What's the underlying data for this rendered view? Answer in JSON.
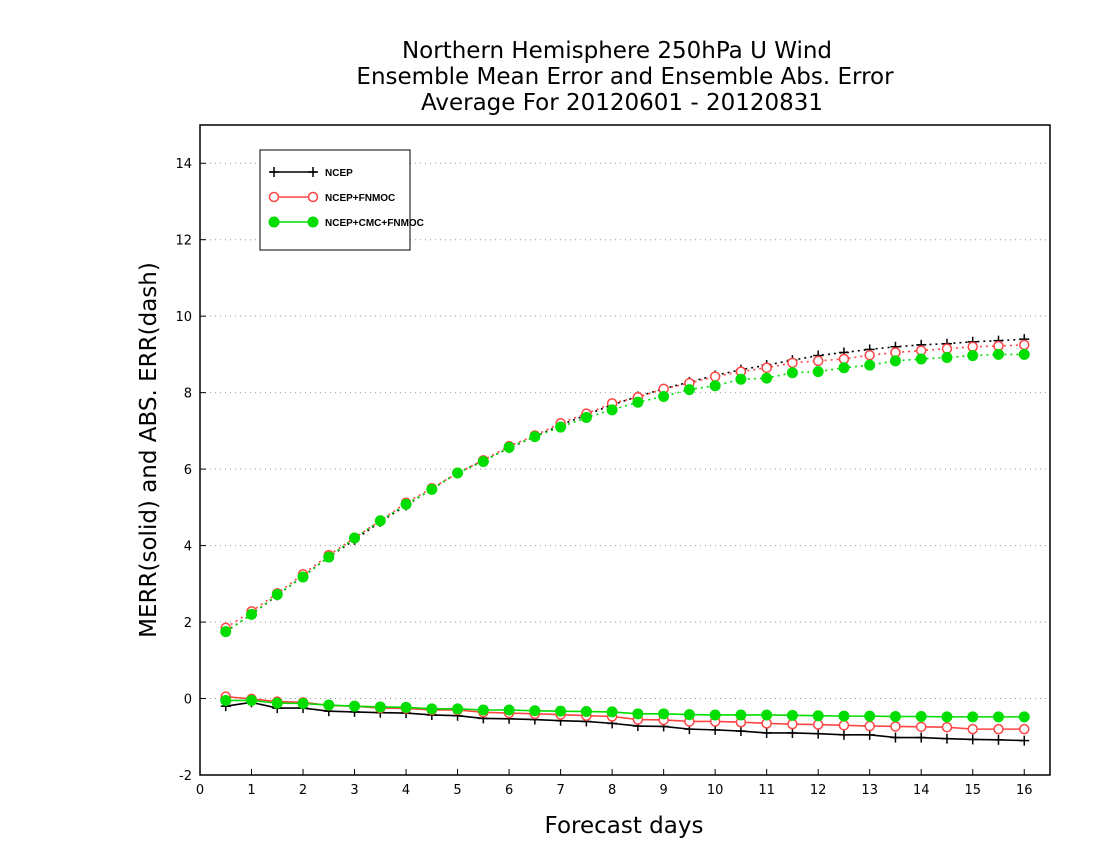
{
  "chart_data": {
    "type": "line",
    "title_lines": [
      "Northern Hemisphere 250hPa U Wind",
      "Ensemble Mean Error and Ensemble Abs. Error",
      "Average For 20120601 - 20120831"
    ],
    "xlabel": "Forecast days",
    "ylabel": "MERR(solid) and ABS. ERR(dash)",
    "xlim": [
      0,
      16.5
    ],
    "ylim": [
      -2,
      15
    ],
    "xticks": [
      "0",
      "1",
      "2",
      "3",
      "4",
      "5",
      "6",
      "7",
      "8",
      "9",
      "10",
      "11",
      "12",
      "13",
      "14",
      "15",
      "16"
    ],
    "yticks": [
      "-2",
      "0",
      "2",
      "4",
      "6",
      "8",
      "10",
      "12",
      "14"
    ],
    "grid": "horizontal dotted",
    "legend_position": "top-left",
    "x": [
      0.5,
      1.0,
      1.5,
      2.0,
      2.5,
      3.0,
      3.5,
      4.0,
      4.5,
      5.0,
      5.5,
      6.0,
      6.5,
      7.0,
      7.5,
      8.0,
      8.5,
      9.0,
      9.5,
      10.0,
      10.5,
      11.0,
      11.5,
      12.0,
      12.5,
      13.0,
      13.5,
      14.0,
      14.5,
      15.0,
      15.5,
      16.0
    ],
    "series": [
      {
        "name": "NCEP",
        "color": "#000000",
        "marker": "plus",
        "merr": [
          -0.2,
          -0.1,
          -0.25,
          -0.25,
          -0.33,
          -0.35,
          -0.37,
          -0.38,
          -0.43,
          -0.45,
          -0.52,
          -0.53,
          -0.55,
          -0.58,
          -0.6,
          -0.65,
          -0.72,
          -0.73,
          -0.8,
          -0.82,
          -0.85,
          -0.9,
          -0.9,
          -0.92,
          -0.95,
          -0.95,
          -1.02,
          -1.02,
          -1.05,
          -1.07,
          -1.08,
          -1.1
        ],
        "abs_err": [
          1.75,
          2.2,
          2.7,
          3.2,
          3.7,
          4.15,
          4.62,
          5.05,
          5.48,
          5.9,
          6.22,
          6.55,
          6.85,
          7.15,
          7.42,
          7.68,
          7.9,
          8.1,
          8.28,
          8.45,
          8.6,
          8.72,
          8.85,
          8.97,
          9.05,
          9.13,
          9.2,
          9.25,
          9.28,
          9.33,
          9.36,
          9.4
        ]
      },
      {
        "name": "NCEP+FNMOC",
        "color": "#ff4444",
        "marker": "open-circle",
        "merr": [
          0.05,
          -0.01,
          -0.08,
          -0.1,
          -0.18,
          -0.2,
          -0.25,
          -0.26,
          -0.3,
          -0.3,
          -0.36,
          -0.38,
          -0.4,
          -0.42,
          -0.45,
          -0.47,
          -0.55,
          -0.56,
          -0.6,
          -0.6,
          -0.62,
          -0.65,
          -0.67,
          -0.68,
          -0.7,
          -0.72,
          -0.73,
          -0.74,
          -0.75,
          -0.8,
          -0.8,
          -0.8
        ],
        "abs_err": [
          1.85,
          2.28,
          2.75,
          3.25,
          3.75,
          4.2,
          4.65,
          5.12,
          5.5,
          5.9,
          6.23,
          6.6,
          6.88,
          7.2,
          7.45,
          7.72,
          7.88,
          8.1,
          8.25,
          8.42,
          8.55,
          8.65,
          8.78,
          8.83,
          8.88,
          8.98,
          9.05,
          9.1,
          9.15,
          9.2,
          9.22,
          9.25
        ]
      },
      {
        "name": "NCEP+CMC+FNMOC",
        "color": "#00dd00",
        "marker": "filled-circle",
        "merr": [
          -0.05,
          -0.05,
          -0.12,
          -0.13,
          -0.17,
          -0.2,
          -0.22,
          -0.23,
          -0.27,
          -0.27,
          -0.3,
          -0.3,
          -0.32,
          -0.33,
          -0.34,
          -0.35,
          -0.4,
          -0.4,
          -0.42,
          -0.43,
          -0.43,
          -0.43,
          -0.44,
          -0.45,
          -0.46,
          -0.46,
          -0.47,
          -0.47,
          -0.48,
          -0.48,
          -0.48,
          -0.48
        ],
        "abs_err": [
          1.75,
          2.2,
          2.72,
          3.18,
          3.7,
          4.2,
          4.65,
          5.08,
          5.47,
          5.9,
          6.2,
          6.57,
          6.85,
          7.1,
          7.35,
          7.55,
          7.75,
          7.9,
          8.08,
          8.18,
          8.35,
          8.38,
          8.52,
          8.55,
          8.65,
          8.72,
          8.83,
          8.88,
          8.92,
          8.97,
          9.0,
          9.0
        ]
      }
    ]
  }
}
